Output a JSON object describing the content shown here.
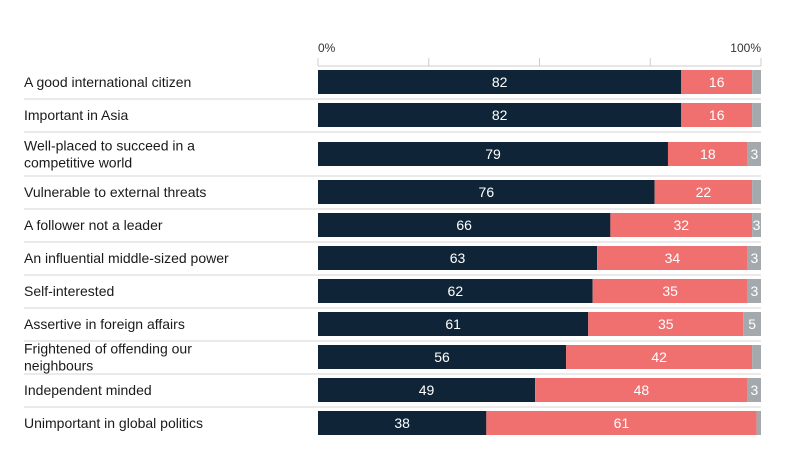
{
  "chart_data": {
    "type": "bar",
    "orientation": "horizontal",
    "stacked": true,
    "xlim": [
      0,
      100
    ],
    "x_ticks": [
      "0%",
      "100%"
    ],
    "grid": true,
    "categories": [
      "A good international citizen",
      "Important in Asia",
      "Well-placed to succeed in a competitive world",
      "Vulnerable to external threats",
      "A follower not a leader",
      "An influential middle-sized power",
      "Self-interested",
      "Assertive in foreign affairs",
      "Frightened of offending our neighbours",
      "Independent minded",
      "Unimportant in global politics"
    ],
    "series": [
      {
        "color": "#0f2537",
        "values": [
          82,
          82,
          79,
          76,
          66,
          63,
          62,
          61,
          56,
          49,
          38
        ]
      },
      {
        "color": "#f07070",
        "values": [
          16,
          16,
          18,
          22,
          32,
          34,
          35,
          35,
          42,
          48,
          61
        ]
      },
      {
        "color": "#a3a9ad",
        "values": [
          2,
          2,
          3,
          2,
          3,
          3,
          3,
          5,
          2,
          3,
          1
        ]
      }
    ],
    "value_labels_shown": [
      [
        true,
        true,
        true,
        true,
        true,
        true,
        true,
        true,
        true,
        true,
        true
      ],
      [
        true,
        true,
        true,
        true,
        true,
        true,
        true,
        true,
        true,
        true,
        true
      ],
      [
        false,
        false,
        true,
        false,
        true,
        true,
        true,
        true,
        false,
        true,
        false
      ]
    ]
  }
}
